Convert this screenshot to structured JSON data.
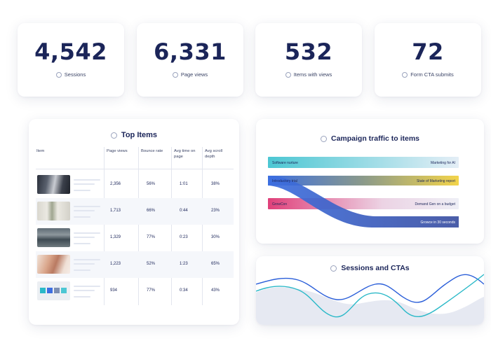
{
  "kpis": [
    {
      "value": "4,542",
      "label": "Sessions"
    },
    {
      "value": "6,331",
      "label": "Page views"
    },
    {
      "value": "532",
      "label": "Items with views"
    },
    {
      "value": "72",
      "label": "Form CTA submits"
    }
  ],
  "top_items": {
    "title": "Top Items",
    "columns": [
      "Item",
      "Page views",
      "Bounce rate",
      "Avg time on page",
      "Avg scroll depth"
    ],
    "rows": [
      {
        "page_views": "2,356",
        "bounce_rate": "56%",
        "avg_time": "1:01",
        "scroll_depth": "38%"
      },
      {
        "page_views": "1,713",
        "bounce_rate": "66%",
        "avg_time": "0:44",
        "scroll_depth": "23%"
      },
      {
        "page_views": "1,329",
        "bounce_rate": "77%",
        "avg_time": "0:23",
        "scroll_depth": "30%"
      },
      {
        "page_views": "1,223",
        "bounce_rate": "52%",
        "avg_time": "1:23",
        "scroll_depth": "65%"
      },
      {
        "page_views": "934",
        "bounce_rate": "77%",
        "avg_time": "0:34",
        "scroll_depth": "43%"
      }
    ]
  },
  "campaign": {
    "title": "Campaign traffic to items",
    "sources": [
      "Software nurture",
      "Introductory trial",
      "GrowCon"
    ],
    "targets": [
      "Marketing for AI",
      "State of Marketing report",
      "Demand Gen on a budget",
      "Growce in 30 seconds"
    ],
    "colors": {
      "teal": "#4cc7d3",
      "blue": "#3d6fe0",
      "pink": "#e0407a",
      "yellow": "#f3d44a",
      "navy": "#3b4fa0"
    }
  },
  "sessions_chart": {
    "title": "Sessions and CTAs",
    "colors": {
      "sessions": "#2b5fd9",
      "ctas": "#2bb9c8",
      "area": "#e6e9f2"
    }
  }
}
